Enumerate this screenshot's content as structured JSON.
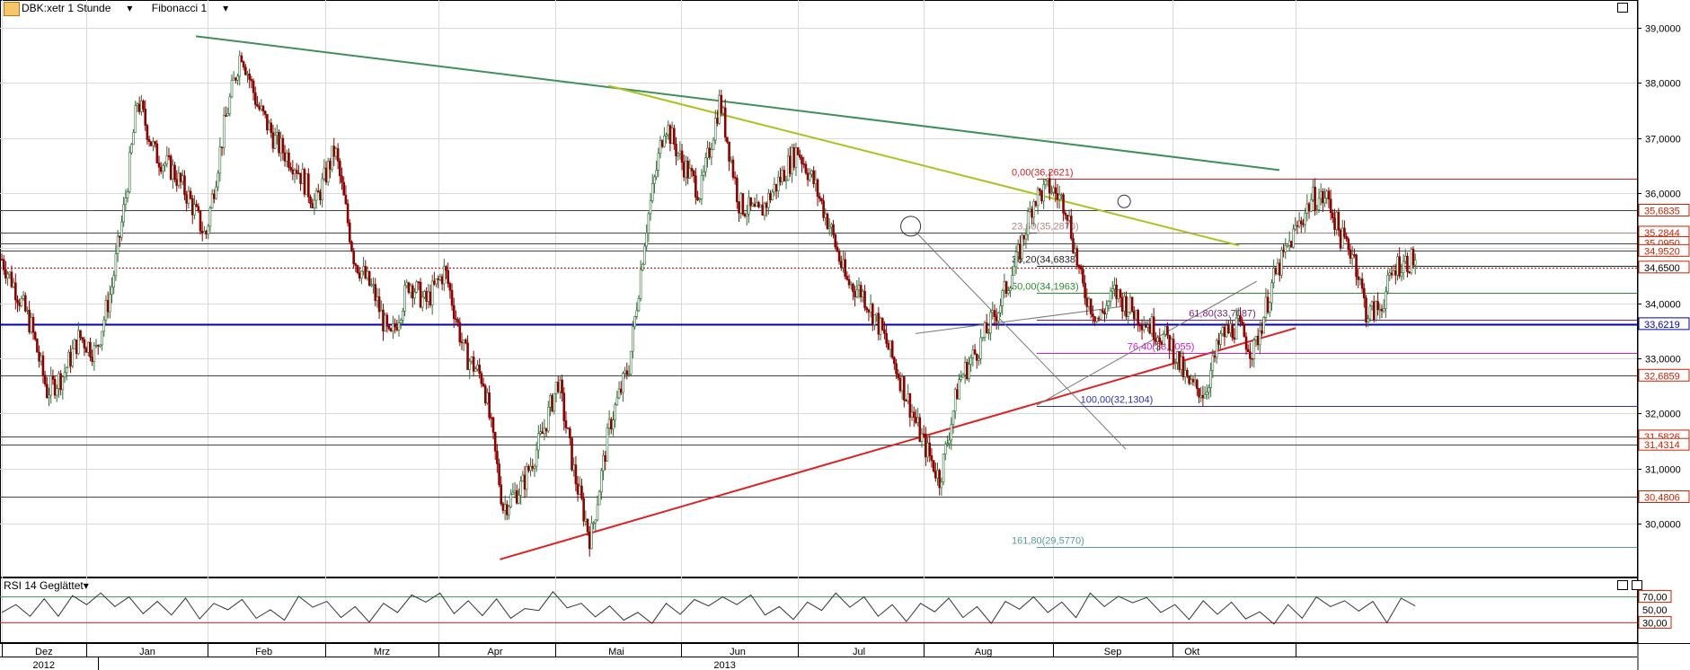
{
  "header": {
    "symbol_label": "DBK:xetr 1 Stunde",
    "indicator_label": "Fibonacci 1",
    "rsi_label": "RSI 14 Geglättet"
  },
  "colors": {
    "grid": "#d9d9d9",
    "bull_candle": "#2f6b33",
    "bear_candle": "#8b0000",
    "axis_box_red": "#cc2200",
    "current_price_line": "#cc0000",
    "support_blue": "#0000b0",
    "trend_green": "#3f8f59",
    "trend_yellow": "#a8c41a",
    "trend_red": "#e02020"
  },
  "chart_data": [
    {
      "type": "candlestick",
      "title": "DBK:xetr 1 Stunde",
      "xlabel": "",
      "ylabel": "",
      "ylim": [
        29.2,
        39.2
      ],
      "grid": true,
      "y_ticks": [
        "39,0000",
        "38,0000",
        "37,0000",
        "36,0000",
        "35,0000",
        "34,0000",
        "33,0000",
        "32,0000",
        "31,0000",
        "30,0000"
      ],
      "x_month_labels": [
        "Dez",
        "Jan",
        "Feb",
        "Mrz",
        "Apr",
        "Mai",
        "Jun",
        "Jul",
        "Aug",
        "Sep",
        "Okt"
      ],
      "x_year_labels": [
        "2012",
        "2013"
      ],
      "price_path": [
        {
          "t": 0.0,
          "p": 34.8
        },
        {
          "t": 0.008,
          "p": 34.3
        },
        {
          "t": 0.018,
          "p": 33.6
        },
        {
          "t": 0.028,
          "p": 32.4
        },
        {
          "t": 0.038,
          "p": 32.7
        },
        {
          "t": 0.048,
          "p": 33.4
        },
        {
          "t": 0.058,
          "p": 33.1
        },
        {
          "t": 0.068,
          "p": 34.3
        },
        {
          "t": 0.076,
          "p": 35.8
        },
        {
          "t": 0.084,
          "p": 37.7
        },
        {
          "t": 0.095,
          "p": 36.7
        },
        {
          "t": 0.106,
          "p": 36.4
        },
        {
          "t": 0.116,
          "p": 35.9
        },
        {
          "t": 0.126,
          "p": 35.2
        },
        {
          "t": 0.138,
          "p": 37.3
        },
        {
          "t": 0.148,
          "p": 38.6
        },
        {
          "t": 0.158,
          "p": 37.6
        },
        {
          "t": 0.17,
          "p": 36.9
        },
        {
          "t": 0.182,
          "p": 36.5
        },
        {
          "t": 0.194,
          "p": 35.8
        },
        {
          "t": 0.206,
          "p": 36.8
        },
        {
          "t": 0.218,
          "p": 34.8
        },
        {
          "t": 0.23,
          "p": 34.2
        },
        {
          "t": 0.24,
          "p": 33.3
        },
        {
          "t": 0.252,
          "p": 34.4
        },
        {
          "t": 0.262,
          "p": 34.0
        },
        {
          "t": 0.274,
          "p": 34.6
        },
        {
          "t": 0.286,
          "p": 33.1
        },
        {
          "t": 0.298,
          "p": 32.6
        },
        {
          "t": 0.31,
          "p": 30.3
        },
        {
          "t": 0.322,
          "p": 30.7
        },
        {
          "t": 0.334,
          "p": 31.6
        },
        {
          "t": 0.344,
          "p": 32.6
        },
        {
          "t": 0.354,
          "p": 30.9
        },
        {
          "t": 0.364,
          "p": 29.7
        },
        {
          "t": 0.376,
          "p": 31.8
        },
        {
          "t": 0.388,
          "p": 32.9
        },
        {
          "t": 0.398,
          "p": 35.3
        },
        {
          "t": 0.41,
          "p": 37.3
        },
        {
          "t": 0.42,
          "p": 36.6
        },
        {
          "t": 0.432,
          "p": 36.0
        },
        {
          "t": 0.444,
          "p": 37.7
        },
        {
          "t": 0.456,
          "p": 35.8
        },
        {
          "t": 0.468,
          "p": 35.6
        },
        {
          "t": 0.48,
          "p": 36.2
        },
        {
          "t": 0.492,
          "p": 36.8
        },
        {
          "t": 0.502,
          "p": 36.2
        },
        {
          "t": 0.512,
          "p": 35.4
        },
        {
          "t": 0.522,
          "p": 34.4
        },
        {
          "t": 0.532,
          "p": 34.2
        },
        {
          "t": 0.544,
          "p": 33.5
        },
        {
          "t": 0.556,
          "p": 32.6
        },
        {
          "t": 0.568,
          "p": 31.6
        },
        {
          "t": 0.58,
          "p": 30.8
        },
        {
          "t": 0.592,
          "p": 32.6
        },
        {
          "t": 0.604,
          "p": 33.2
        },
        {
          "t": 0.616,
          "p": 33.9
        },
        {
          "t": 0.628,
          "p": 34.8
        },
        {
          "t": 0.638,
          "p": 35.9
        },
        {
          "t": 0.648,
          "p": 36.1
        },
        {
          "t": 0.658,
          "p": 35.8
        },
        {
          "t": 0.668,
          "p": 34.3
        },
        {
          "t": 0.678,
          "p": 33.7
        },
        {
          "t": 0.688,
          "p": 34.2
        },
        {
          "t": 0.698,
          "p": 33.9
        },
        {
          "t": 0.71,
          "p": 33.6
        },
        {
          "t": 0.722,
          "p": 33.3
        },
        {
          "t": 0.734,
          "p": 32.5
        },
        {
          "t": 0.744,
          "p": 32.4
        },
        {
          "t": 0.754,
          "p": 33.4
        },
        {
          "t": 0.764,
          "p": 33.6
        },
        {
          "t": 0.774,
          "p": 33.1
        },
        {
          "t": 0.786,
          "p": 34.4
        },
        {
          "t": 0.798,
          "p": 35.2
        },
        {
          "t": 0.81,
          "p": 35.9
        },
        {
          "t": 0.82,
          "p": 35.9
        },
        {
          "t": 0.828,
          "p": 35.2
        },
        {
          "t": 0.836,
          "p": 34.9
        },
        {
          "t": 0.844,
          "p": 33.8
        },
        {
          "t": 0.852,
          "p": 33.9
        },
        {
          "t": 0.862,
          "p": 34.7
        },
        {
          "t": 0.874,
          "p": 34.8
        }
      ]
    },
    {
      "type": "line",
      "title": "RSI 14 Geglättet",
      "ylim": [
        0,
        100
      ],
      "y_ticks": [
        "70,00",
        "50,00",
        "30,00"
      ],
      "series": [
        {
          "values": [
            46,
            58,
            40,
            67,
            40,
            72,
            58,
            76,
            55,
            70,
            44,
            63,
            42,
            68,
            36,
            60,
            50,
            66,
            37,
            50,
            34,
            71,
            54,
            63,
            38,
            55,
            31,
            60,
            46,
            73,
            62,
            76,
            44,
            64,
            41,
            67,
            37,
            52,
            49,
            78,
            53,
            60,
            39,
            56,
            34,
            46,
            29,
            60,
            43,
            66,
            56,
            70,
            58,
            73,
            42,
            55,
            35,
            62,
            49,
            76,
            54,
            70,
            40,
            58,
            32,
            60,
            47,
            68,
            38,
            55,
            29,
            63,
            51,
            70,
            46,
            62,
            38,
            76,
            55,
            71,
            61,
            69,
            46,
            58,
            35,
            64,
            43,
            62,
            36,
            47,
            28,
            58,
            37,
            70,
            55,
            64,
            48,
            63,
            30,
            68,
            56
          ]
        }
      ]
    }
  ],
  "price_axis_labels": [
    {
      "value": 35.6835,
      "label": "35,6835"
    },
    {
      "value": 35.2844,
      "label": "35,2844"
    },
    {
      "value": 35.095,
      "label": "35,0950"
    },
    {
      "value": 34.952,
      "label": "34,9520"
    },
    {
      "value": 34.65,
      "label": "34,6500"
    },
    {
      "value": 33.6219,
      "label": "33,6219"
    },
    {
      "value": 32.6859,
      "label": "32,6859"
    },
    {
      "value": 31.5826,
      "label": "31,5826"
    },
    {
      "value": 31.4314,
      "label": "31,4314"
    },
    {
      "value": 30.4806,
      "label": "30,4806"
    }
  ],
  "rsi_axis_labels": [
    {
      "value": 70,
      "label": "70,00",
      "boxed": true
    },
    {
      "value": 50,
      "label": "50,00",
      "boxed": false
    },
    {
      "value": 30,
      "label": "30,00",
      "boxed": true
    }
  ],
  "fibonacci_levels": [
    {
      "value": 36.2621,
      "label": "0,00(36,2621)",
      "color": "#d22222"
    },
    {
      "value": 35.287,
      "label": "23,60(35,2870)",
      "color": "#b08686"
    },
    {
      "value": 34.6838,
      "label": "38,20(34,6838)",
      "color": "#222222"
    },
    {
      "value": 34.1963,
      "label": "50,00(34,1963)",
      "color": "#2e8b2e"
    },
    {
      "value": 33.7087,
      "label": "61,80(33,7087)",
      "color": "#7a1e7a"
    },
    {
      "value": 33.1055,
      "label": "76,40(33,1055)",
      "color": "#d020d0"
    },
    {
      "value": 32.1304,
      "label": "100,00(32,1304)",
      "color": "#3030c0"
    },
    {
      "value": 29.577,
      "label": "161,80(29,5770)",
      "color": "#5a9a9a"
    }
  ]
}
